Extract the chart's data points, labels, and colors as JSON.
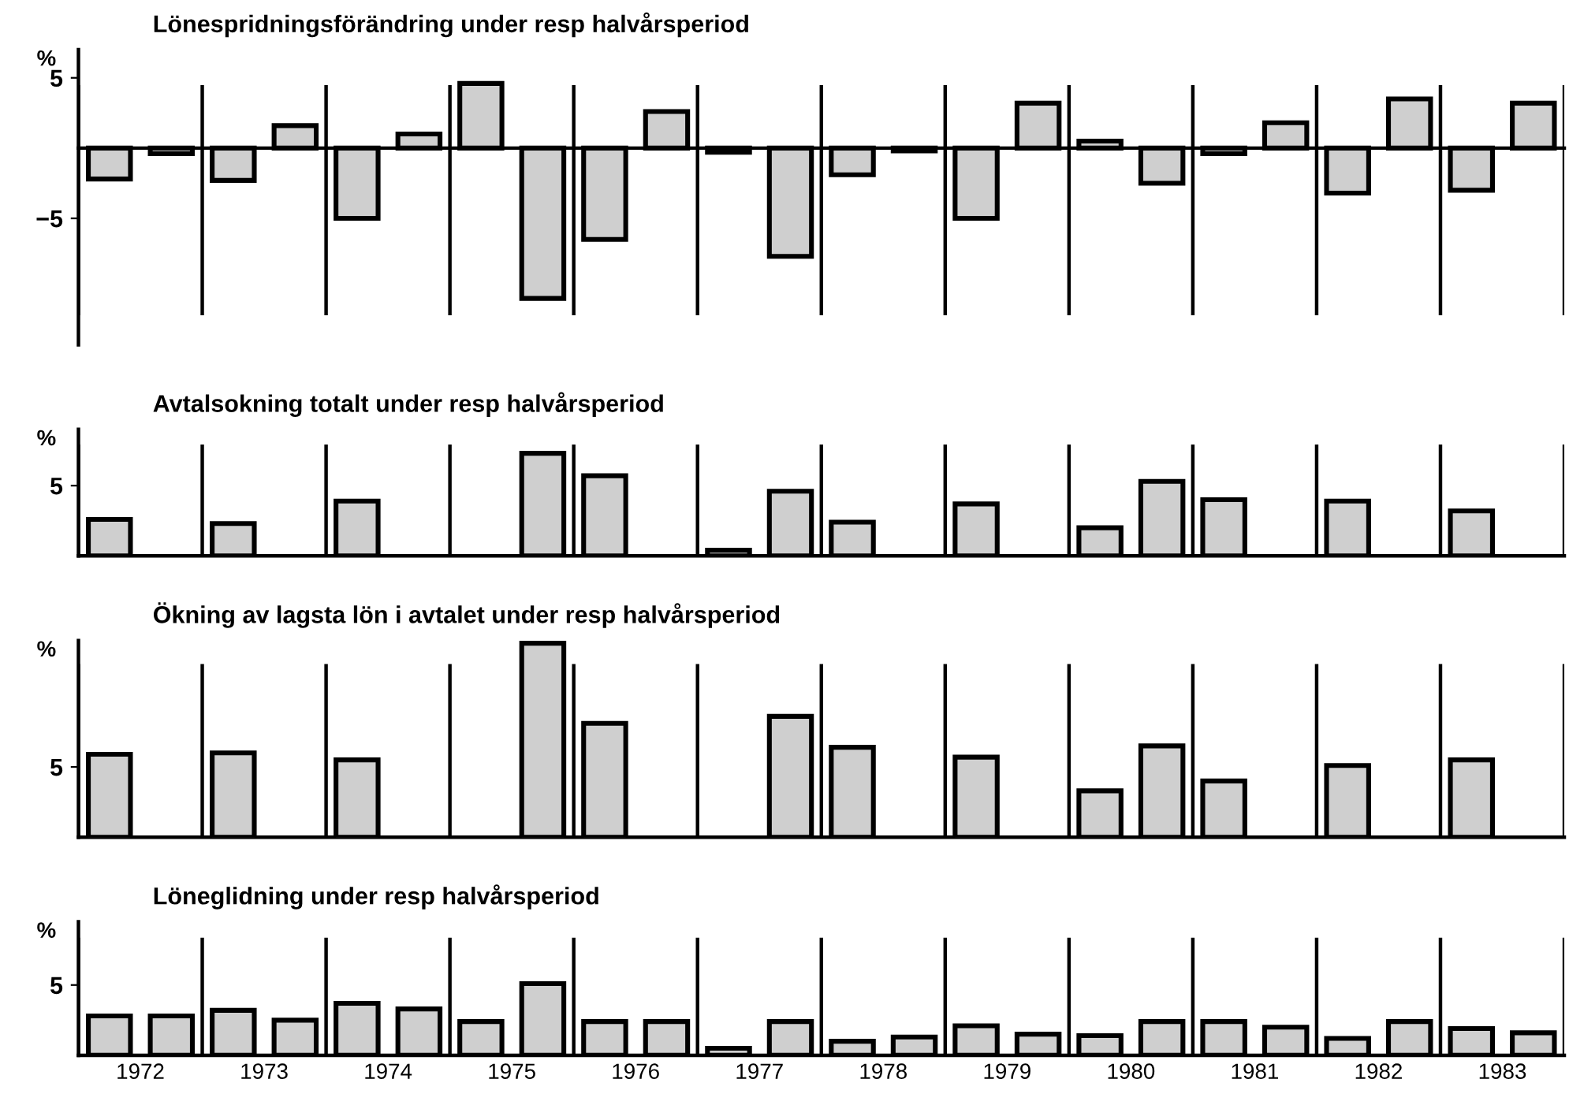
{
  "chart_data": [
    {
      "type": "bar",
      "title": "Lönespridningsförändring under resp halvårsperiod",
      "ylabel": "%",
      "categories": [
        "1972",
        "1973",
        "1974",
        "1975",
        "1976",
        "1977",
        "1978",
        "1979",
        "1980",
        "1981",
        "1982",
        "1983"
      ],
      "series": [
        {
          "color": "#cfcfcf",
          "values": [
            -2.2,
            -2.3,
            -5.0,
            4.6,
            -6.5,
            -0.3,
            -1.9,
            -5.0,
            0.5,
            -0.4,
            -3.2,
            -3.0
          ]
        },
        {
          "color": "#cfcfcf",
          "values": [
            -0.4,
            1.6,
            1.0,
            -10.7,
            2.6,
            -7.7,
            -0.2,
            3.2,
            -2.5,
            1.8,
            3.5,
            3.2
          ]
        }
      ],
      "ylim": [
        -14,
        7
      ],
      "yticks": [
        {
          "value": -5,
          "label": "−5"
        },
        5
      ],
      "grid": "x",
      "tick_labels": "y"
    },
    {
      "type": "bar",
      "title": "Avtalsokning totalt under resp halvårsperiod",
      "ylabel": "%",
      "categories": [
        "1972",
        "1973",
        "1974",
        "1975",
        "1976",
        "1977",
        "1978",
        "1979",
        "1980",
        "1981",
        "1982",
        "1983"
      ],
      "series": [
        {
          "color": "#cfcfcf",
          "values": [
            2.6,
            2.3,
            3.9,
            null,
            5.7,
            0.4,
            2.4,
            3.7,
            2.0,
            4.0,
            3.9,
            3.2
          ]
        },
        {
          "color": "#cfcfcf",
          "values": [
            null,
            null,
            null,
            7.3,
            null,
            4.6,
            null,
            null,
            5.3,
            null,
            null,
            null
          ]
        }
      ],
      "ylim": [
        0,
        9
      ],
      "yticks": [
        5
      ],
      "grid": "x",
      "tick_labels": "y"
    },
    {
      "type": "bar",
      "title": "Ökning av lagsta lön i avtalet under resp halvårsperiod",
      "ylabel": "%",
      "categories": [
        "1972",
        "1973",
        "1974",
        "1975",
        "1976",
        "1977",
        "1978",
        "1979",
        "1980",
        "1981",
        "1982",
        "1983"
      ],
      "series": [
        {
          "color": "#cfcfcf",
          "values": [
            5.9,
            6.0,
            5.5,
            null,
            8.1,
            null,
            6.4,
            5.7,
            3.3,
            4.0,
            5.1,
            5.5
          ]
        },
        {
          "color": "#cfcfcf",
          "values": [
            null,
            null,
            null,
            13.8,
            null,
            8.6,
            null,
            null,
            6.5,
            null,
            null,
            null
          ]
        }
      ],
      "ylim": [
        0,
        14
      ],
      "yticks": [
        5
      ],
      "grid": "x",
      "tick_labels": "y"
    },
    {
      "type": "bar",
      "title": "Löneglidning under resp halvårsperiod",
      "ylabel": "%",
      "categories": [
        "1972",
        "1973",
        "1974",
        "1975",
        "1976",
        "1977",
        "1978",
        "1979",
        "1980",
        "1981",
        "1982",
        "1983"
      ],
      "series": [
        {
          "color": "#cfcfcf",
          "values": [
            2.8,
            3.2,
            3.7,
            2.4,
            2.4,
            0.5,
            1.0,
            2.1,
            1.4,
            2.4,
            1.2,
            1.9
          ]
        },
        {
          "color": "#cfcfcf",
          "values": [
            2.8,
            2.5,
            3.3,
            5.1,
            2.4,
            2.4,
            1.3,
            1.5,
            2.4,
            2.0,
            2.4,
            1.6
          ]
        }
      ],
      "ylim": [
        0,
        9.5
      ],
      "yticks": [
        5
      ],
      "grid": "x"
    }
  ]
}
